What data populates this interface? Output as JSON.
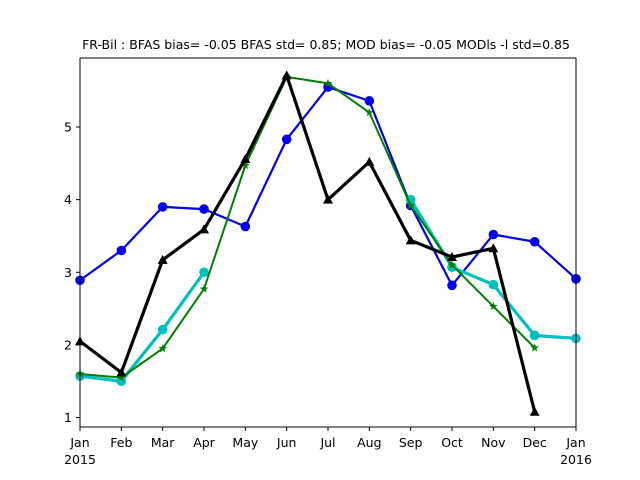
{
  "chart_data": {
    "type": "line",
    "title": "FR-Bil   : BFAS bias= -0.05 BFAS std= 0.85; MOD bias= -0.05 MODls -l std=0.85",
    "xlabel": "",
    "ylabel": "",
    "x": [
      "2015-01",
      "2015-02",
      "2015-03",
      "2015-04",
      "2015-05",
      "2015-06",
      "2015-07",
      "2015-08",
      "2015-09",
      "2015-10",
      "2015-11",
      "2015-12",
      "2016-01"
    ],
    "x_ticks": [
      {
        "month": "Jan",
        "year": "2015"
      },
      {
        "month": "Feb",
        "year": ""
      },
      {
        "month": "Mar",
        "year": ""
      },
      {
        "month": "Apr",
        "year": ""
      },
      {
        "month": "May",
        "year": ""
      },
      {
        "month": "Jun",
        "year": ""
      },
      {
        "month": "Jul",
        "year": ""
      },
      {
        "month": "Aug",
        "year": ""
      },
      {
        "month": "Sep",
        "year": ""
      },
      {
        "month": "Oct",
        "year": ""
      },
      {
        "month": "Nov",
        "year": ""
      },
      {
        "month": "Dec",
        "year": ""
      },
      {
        "month": "Jan",
        "year": "2016"
      }
    ],
    "y_ticks": [
      1,
      2,
      3,
      4,
      5
    ],
    "xlim": [
      "2015-01",
      "2016-01"
    ],
    "ylim": [
      0.87,
      5.95
    ],
    "grid": false,
    "series": [
      {
        "color": "#0000ee",
        "marker": "circle",
        "width": 2.2,
        "values": [
          2.89,
          3.3,
          3.9,
          3.87,
          3.63,
          4.83,
          5.55,
          5.36,
          3.92,
          2.82,
          3.52,
          3.42,
          2.91
        ]
      },
      {
        "color": "#00bfbf",
        "marker": "circle",
        "width": 3.2,
        "values": [
          1.57,
          1.5,
          2.21,
          3.0,
          null,
          null,
          null,
          null,
          4.0,
          3.07,
          2.83,
          2.13,
          2.09
        ]
      },
      {
        "color": "#008000",
        "marker": "star",
        "width": 2.0,
        "values": [
          1.6,
          1.55,
          1.95,
          2.77,
          4.47,
          5.69,
          5.6,
          5.2,
          3.92,
          3.1,
          2.53,
          1.96,
          null
        ]
      },
      {
        "color": "#000000",
        "marker": "triangle",
        "width": 3.2,
        "values": [
          2.05,
          1.62,
          3.17,
          3.59,
          4.56,
          5.71,
          4.0,
          4.52,
          3.44,
          3.21,
          3.33,
          1.08,
          null
        ]
      }
    ]
  }
}
